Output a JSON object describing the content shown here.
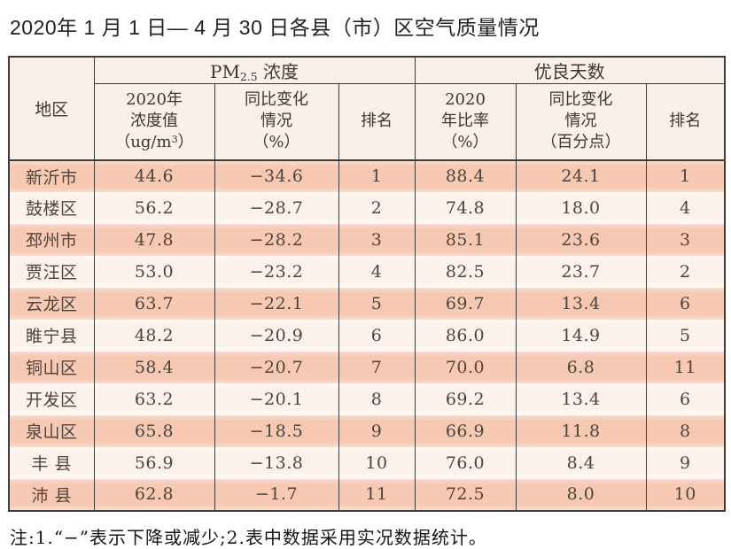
{
  "title": "2020年 1 月 1 日— 4 月 30 日各县（市）区空气质量情况",
  "table": {
    "corner_header": "地区",
    "pm_group": {
      "prefix": "PM",
      "sub": "2.5",
      "suffix": " 浓度"
    },
    "days_group_label": "优良天数",
    "col_pm_value": {
      "line1": "2020年",
      "line2": "浓度值",
      "line3_prefix": "（ug/m",
      "line3_sup": "3",
      "line3_suffix": "）"
    },
    "col_pm_change": {
      "line1": "同比变化",
      "line2": "情况",
      "line3": "（%）"
    },
    "col_pm_rank": "排名",
    "col_days_rate": {
      "line1": "2020",
      "line2": "年比率",
      "line3": "（%）"
    },
    "col_days_change": {
      "line1": "同比变化",
      "line2": "情况",
      "line3": "（百分点）"
    },
    "col_days_rank": "排名",
    "rows": [
      {
        "region": "新沂市",
        "pm_value": "44.6",
        "pm_change": "−34.6",
        "pm_rank": "1",
        "days_rate": "88.4",
        "days_change": "24.1",
        "days_rank": "1"
      },
      {
        "region": "鼓楼区",
        "pm_value": "56.2",
        "pm_change": "−28.7",
        "pm_rank": "2",
        "days_rate": "74.8",
        "days_change": "18.0",
        "days_rank": "4"
      },
      {
        "region": "邳州市",
        "pm_value": "47.8",
        "pm_change": "−28.2",
        "pm_rank": "3",
        "days_rate": "85.1",
        "days_change": "23.6",
        "days_rank": "3"
      },
      {
        "region": "贾汪区",
        "pm_value": "53.0",
        "pm_change": "−23.2",
        "pm_rank": "4",
        "days_rate": "82.5",
        "days_change": "23.7",
        "days_rank": "2"
      },
      {
        "region": "云龙区",
        "pm_value": "63.7",
        "pm_change": "−22.1",
        "pm_rank": "5",
        "days_rate": "69.7",
        "days_change": "13.4",
        "days_rank": "6"
      },
      {
        "region": "睢宁县",
        "pm_value": "48.2",
        "pm_change": "−20.9",
        "pm_rank": "6",
        "days_rate": "86.0",
        "days_change": "14.9",
        "days_rank": "5"
      },
      {
        "region": "铜山区",
        "pm_value": "58.4",
        "pm_change": "−20.7",
        "pm_rank": "7",
        "days_rate": "70.0",
        "days_change": "6.8",
        "days_rank": "11"
      },
      {
        "region": "开发区",
        "pm_value": "63.2",
        "pm_change": "−20.1",
        "pm_rank": "8",
        "days_rate": "69.2",
        "days_change": "13.4",
        "days_rank": "6"
      },
      {
        "region": "泉山区",
        "pm_value": "65.8",
        "pm_change": "−18.5",
        "pm_rank": "9",
        "days_rate": "66.9",
        "days_change": "11.8",
        "days_rank": "8"
      },
      {
        "region": "丰 县",
        "pm_value": "56.9",
        "pm_change": "−13.8",
        "pm_rank": "10",
        "days_rate": "76.0",
        "days_change": "8.4",
        "days_rank": "9"
      },
      {
        "region": "沛 县",
        "pm_value": "62.8",
        "pm_change": "−1.7",
        "pm_rank": "11",
        "days_rate": "72.5",
        "days_change": "8.0",
        "days_rank": "10"
      }
    ]
  },
  "footnote": "注:1.“−”表示下降或减少;2.表中数据采用实况数据统计。",
  "colors": {
    "border": "#3b3b3b",
    "header_bg": "#fbf0e8",
    "row_dark": "#f8c9b2",
    "row_dark_edge": "#fbdccb",
    "row_light": "#fdf2ea",
    "row_light_edge": "#fffaf6",
    "text": "#4c443e",
    "header_text": "#3c3631",
    "title_text": "#222222"
  }
}
